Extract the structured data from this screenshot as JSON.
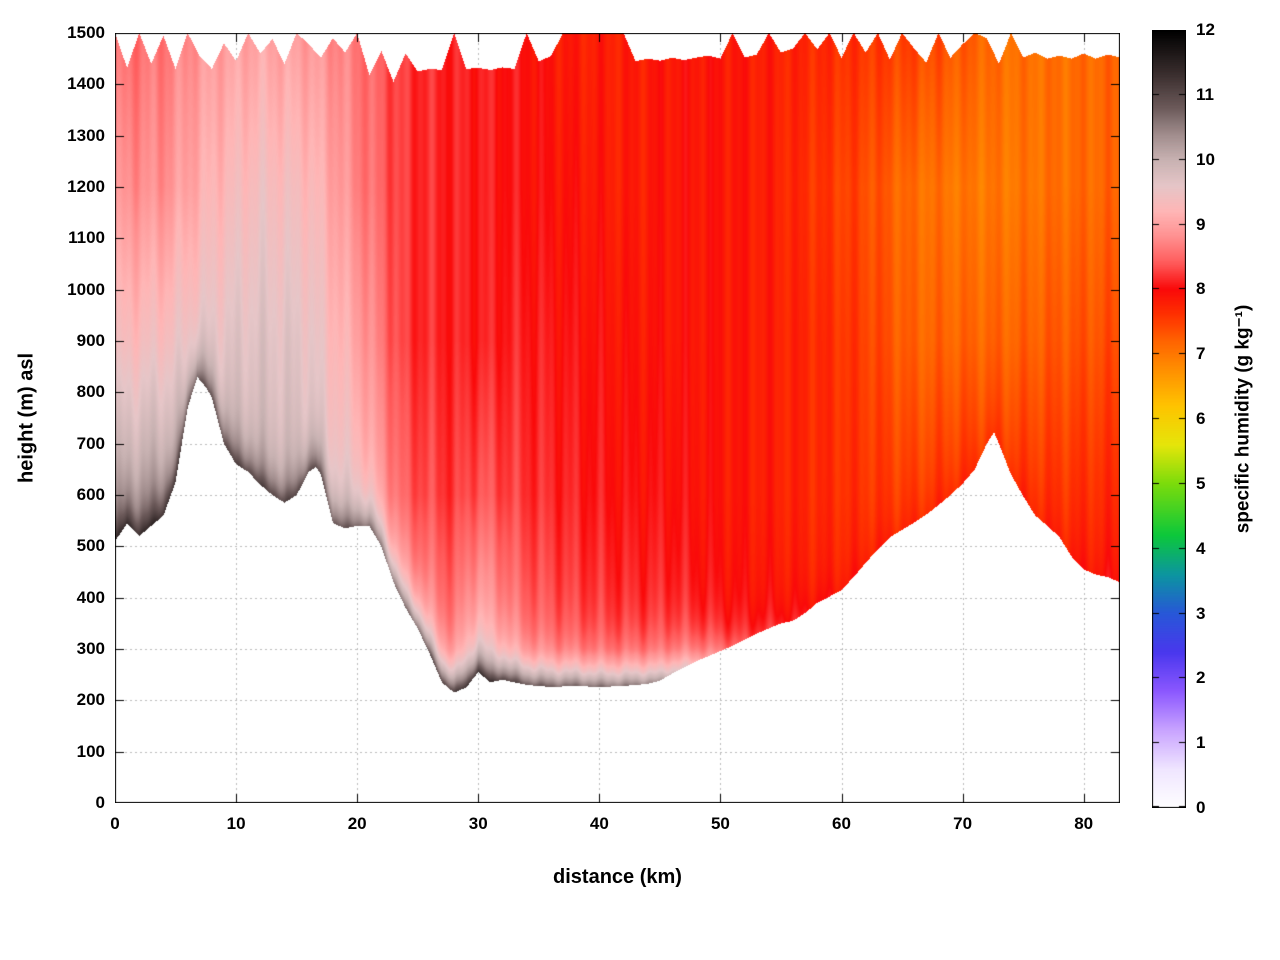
{
  "chart_data": {
    "type": "heatmap",
    "title": "",
    "xlabel": "distance (km)",
    "ylabel": "height (m) asl",
    "colorbar_label": "specific humidity (g kg⁻¹)",
    "xlim": [
      0,
      83
    ],
    "ylim": [
      0,
      1500
    ],
    "x_ticks": [
      0,
      10,
      20,
      30,
      40,
      50,
      60,
      70,
      80
    ],
    "y_ticks": [
      0,
      100,
      200,
      300,
      400,
      500,
      600,
      700,
      800,
      900,
      1000,
      1100,
      1200,
      1300,
      1400,
      1500
    ],
    "cb_ticks": [
      0,
      1,
      2,
      3,
      4,
      5,
      6,
      7,
      8,
      9,
      10,
      11,
      12
    ],
    "cb_range": [
      0,
      12
    ],
    "grid": true,
    "grid_color": "#bbbbbb",
    "border_color": "#000000",
    "background_color": "#ffffff",
    "palette": [
      [
        0.0,
        "#ffffff"
      ],
      [
        0.6,
        "#f0e6ff"
      ],
      [
        1.2,
        "#c9a4ff"
      ],
      [
        1.8,
        "#8c58ff"
      ],
      [
        2.4,
        "#4a38ee"
      ],
      [
        3.0,
        "#2858d8"
      ],
      [
        3.6,
        "#0c96a0"
      ],
      [
        4.2,
        "#0cc83c"
      ],
      [
        5.0,
        "#7cdc0c"
      ],
      [
        5.6,
        "#e6e60a"
      ],
      [
        6.2,
        "#ffc400"
      ],
      [
        6.8,
        "#ff8c00"
      ],
      [
        7.2,
        "#ff6400"
      ],
      [
        7.6,
        "#ff3200"
      ],
      [
        8.0,
        "#fa0a0a"
      ],
      [
        8.4,
        "#ff5a5a"
      ],
      [
        8.8,
        "#ff9090"
      ],
      [
        9.2,
        "#ffb6b6"
      ],
      [
        9.6,
        "#e6c6c8"
      ],
      [
        10.0,
        "#c8b2b2"
      ],
      [
        10.4,
        "#a08c8c"
      ],
      [
        10.8,
        "#6c5a5a"
      ],
      [
        11.3,
        "#3c3030"
      ],
      [
        12.0,
        "#000000"
      ]
    ],
    "terrain_profile": {
      "x": [
        0,
        1,
        2,
        3,
        4,
        5,
        6,
        6.8,
        7.5,
        8,
        9,
        10,
        11,
        12,
        13,
        14,
        15,
        16,
        16.6,
        17,
        18,
        19,
        20,
        21,
        22,
        23,
        24,
        25,
        26,
        27,
        28,
        29,
        30,
        30.5,
        31,
        32,
        34,
        36,
        38,
        40,
        42,
        44,
        45,
        46,
        47,
        48,
        49,
        50,
        51,
        52,
        53,
        54,
        55,
        56,
        57,
        58,
        59,
        60,
        61,
        62,
        63,
        64,
        65,
        66,
        67,
        68,
        69,
        70,
        71,
        72,
        72.6,
        73,
        74,
        75,
        76,
        77,
        78,
        79,
        80,
        81,
        82,
        83
      ],
      "height_m": [
        510,
        545,
        520,
        540,
        560,
        625,
        770,
        830,
        810,
        790,
        700,
        660,
        645,
        620,
        600,
        585,
        600,
        645,
        655,
        640,
        545,
        535,
        540,
        540,
        500,
        430,
        380,
        340,
        290,
        235,
        215,
        225,
        255,
        245,
        235,
        240,
        230,
        226,
        228,
        226,
        228,
        232,
        238,
        252,
        264,
        276,
        286,
        296,
        306,
        318,
        330,
        340,
        350,
        355,
        370,
        390,
        402,
        415,
        440,
        468,
        494,
        518,
        532,
        546,
        562,
        580,
        600,
        622,
        650,
        700,
        722,
        700,
        640,
        598,
        560,
        540,
        518,
        480,
        455,
        445,
        440,
        430
      ]
    },
    "cloud_top_profile": {
      "x": [
        0,
        1,
        2,
        3,
        4,
        5,
        6,
        7,
        8,
        9,
        10,
        11,
        12,
        13,
        14,
        15,
        16,
        17,
        18,
        19,
        20,
        21,
        22,
        23,
        24,
        25,
        26,
        27,
        28,
        29,
        30,
        31,
        32,
        33,
        34,
        35,
        36,
        37,
        38,
        39,
        40,
        41,
        42,
        43,
        44,
        45,
        46,
        47,
        48,
        49,
        50,
        51,
        52,
        53,
        54,
        55,
        56,
        57,
        58,
        59,
        60,
        61,
        62,
        63,
        64,
        65,
        66,
        67,
        68,
        69,
        70,
        71,
        72,
        73,
        74,
        75,
        76,
        77,
        78,
        79,
        80,
        81,
        82,
        83
      ],
      "height_m": [
        1500,
        1432,
        1500,
        1440,
        1495,
        1430,
        1500,
        1455,
        1430,
        1480,
        1445,
        1500,
        1460,
        1488,
        1440,
        1500,
        1478,
        1452,
        1490,
        1462,
        1500,
        1418,
        1465,
        1405,
        1460,
        1425,
        1430,
        1428,
        1500,
        1430,
        1432,
        1428,
        1433,
        1430,
        1500,
        1445,
        1455,
        1500,
        1500,
        1500,
        1500,
        1500,
        1500,
        1445,
        1450,
        1446,
        1452,
        1447,
        1452,
        1456,
        1450,
        1500,
        1452,
        1458,
        1500,
        1462,
        1470,
        1500,
        1468,
        1500,
        1452,
        1500,
        1462,
        1500,
        1448,
        1500,
        1470,
        1442,
        1500,
        1452,
        1478,
        1500,
        1490,
        1440,
        1500,
        1452,
        1462,
        1450,
        1456,
        1450,
        1460,
        1450,
        1458,
        1452
      ]
    },
    "humidity_grid": {
      "x_km": [
        0,
        4,
        8,
        12,
        16,
        20,
        24,
        28,
        30,
        34,
        38,
        42,
        46,
        50,
        54,
        58,
        62,
        66,
        70,
        74,
        78,
        83
      ],
      "z_m": [
        0,
        300,
        600,
        900,
        1200,
        1500
      ],
      "q_g_per_kg": [
        [
          10.6,
          10.6,
          10.1,
          9.3,
          8.8,
          8.5
        ],
        [
          10.6,
          10.6,
          10.2,
          9.4,
          8.8,
          8.6
        ],
        [
          10.6,
          10.4,
          10.0,
          9.6,
          9.2,
          8.9
        ],
        [
          10.4,
          10.2,
          9.9,
          9.7,
          9.4,
          9.0
        ],
        [
          10.4,
          10.2,
          9.8,
          9.6,
          9.3,
          8.9
        ],
        [
          10.3,
          10.0,
          9.4,
          9.0,
          8.7,
          8.6
        ],
        [
          10.2,
          9.0,
          8.4,
          8.2,
          8.2,
          8.2
        ],
        [
          10.3,
          8.6,
          8.2,
          8.1,
          8.1,
          8.1
        ],
        [
          10.2,
          9.2,
          8.4,
          8.1,
          8.1,
          8.1
        ],
        [
          10.2,
          8.5,
          8.2,
          8.1,
          8.0,
          8.0
        ],
        [
          10.1,
          8.3,
          8.1,
          8.0,
          7.9,
          7.8
        ],
        [
          10.0,
          8.2,
          8.0,
          7.9,
          7.8,
          7.8
        ],
        [
          9.6,
          8.2,
          8.0,
          7.9,
          7.9,
          7.9
        ],
        [
          8.6,
          8.0,
          7.9,
          7.9,
          7.9,
          7.9
        ],
        [
          8.2,
          7.9,
          7.8,
          7.8,
          7.8,
          7.8
        ],
        [
          8.0,
          7.8,
          7.7,
          7.7,
          7.6,
          7.7
        ],
        [
          7.9,
          7.8,
          7.6,
          7.5,
          7.4,
          7.6
        ],
        [
          7.9,
          7.8,
          7.5,
          7.2,
          7.1,
          7.5
        ],
        [
          7.9,
          7.8,
          7.6,
          7.2,
          7.0,
          7.3
        ],
        [
          8.0,
          7.8,
          7.6,
          7.2,
          7.0,
          7.1
        ],
        [
          8.1,
          7.9,
          7.6,
          7.3,
          7.1,
          7.1
        ],
        [
          8.2,
          8.0,
          7.7,
          7.4,
          7.2,
          7.2
        ]
      ]
    },
    "surface_layer": {
      "decay_m": 45,
      "extra_q": [
        [
          0,
          1.1
        ],
        [
          20,
          1.2
        ],
        [
          26,
          2.0
        ],
        [
          44,
          1.9
        ],
        [
          48,
          1.0
        ],
        [
          52,
          0.35
        ],
        [
          60,
          0.15
        ],
        [
          83,
          0.1
        ]
      ]
    },
    "streak_texture": {
      "a1": 0.1,
      "f1": 2.7,
      "a2": 0.07,
      "f2": 6.3
    }
  }
}
